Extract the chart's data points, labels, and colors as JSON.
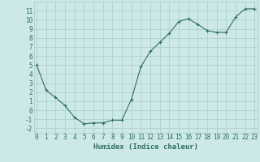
{
  "x": [
    0,
    1,
    2,
    3,
    4,
    5,
    6,
    7,
    8,
    9,
    10,
    11,
    12,
    13,
    14,
    15,
    16,
    17,
    18,
    19,
    20,
    21,
    22,
    23
  ],
  "y": [
    5,
    2.2,
    1.4,
    0.5,
    -0.8,
    -1.5,
    -1.4,
    -1.4,
    -1.1,
    -1.1,
    1.2,
    4.8,
    6.5,
    7.5,
    8.5,
    9.8,
    10.1,
    9.5,
    8.8,
    8.6,
    8.6,
    10.3,
    11.2,
    11.2
  ],
  "line_color": "#2e6e63",
  "marker": "+",
  "marker_size": 3,
  "bg_color": "#cce9e7",
  "grid_color": "#b0d0ce",
  "xlabel": "Humidex (Indice chaleur)",
  "xlabel_fontsize": 6.5,
  "tick_fontsize": 5.5,
  "ylim": [
    -2.5,
    12
  ],
  "xlim": [
    -0.3,
    23.3
  ],
  "yticks": [
    -2,
    -1,
    0,
    1,
    2,
    3,
    4,
    5,
    6,
    7,
    8,
    9,
    10,
    11
  ],
  "xticks": [
    0,
    1,
    2,
    3,
    4,
    5,
    6,
    7,
    8,
    9,
    10,
    11,
    12,
    13,
    14,
    15,
    16,
    17,
    18,
    19,
    20,
    21,
    22,
    23
  ]
}
